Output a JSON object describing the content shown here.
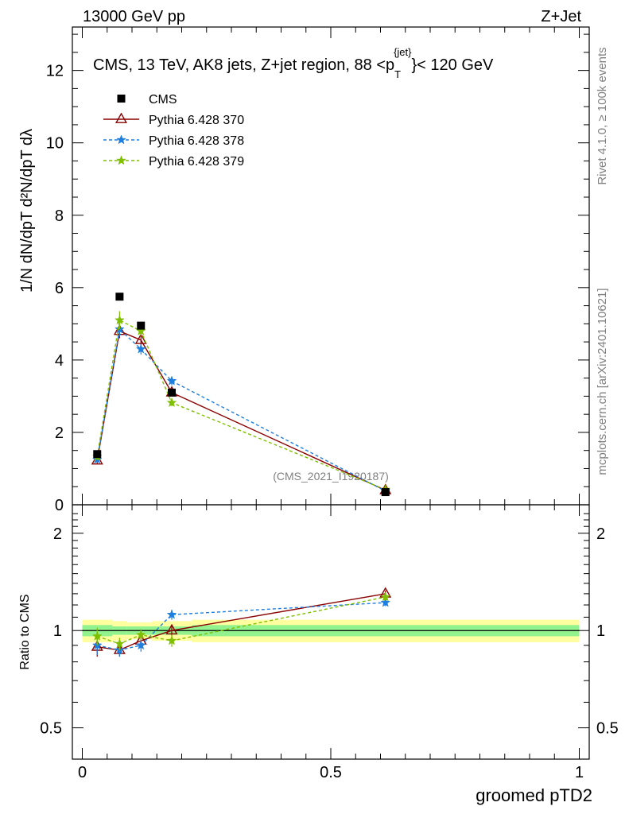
{
  "header": {
    "energy_label": "13000 GeV pp",
    "process_label": "Z+Jet"
  },
  "side_labels": {
    "rivet": "Rivet 4.1.0, ≥ 100k events",
    "mcplots": "mcplots.cern.ch [arXiv:2401.10621]"
  },
  "chart_data": {
    "type": "line",
    "title": "CMS, 13 TeV, AK8 jets, Z+jet region, 88 <p_T^{jet}< 120 GeV",
    "title_parts": {
      "main": "CMS, 13 TeV, AK8 jets, Z+jet region, 88 <p",
      "sub": "T",
      "sup": "{jet}",
      "tail": "}< 120 GeV"
    },
    "watermark": "(CMS_2021_I1920187)",
    "xlabel": "groomed pTD2",
    "ylabel_main": "1/N dN/dpT d²N/dpT dλ",
    "ylabel_ratio": "Ratio to CMS",
    "xlim": [
      -0.02,
      1.02
    ],
    "ylim_main": [
      0,
      13.2
    ],
    "ylim_ratio": [
      0.4,
      2.45
    ],
    "x_ticks": [
      0,
      0.5,
      1
    ],
    "x_tick_labels": [
      "0",
      "0.5",
      "1"
    ],
    "y_ticks_main": [
      0,
      2,
      4,
      6,
      8,
      10,
      12
    ],
    "y_tick_labels_main": [
      "0",
      "2",
      "4",
      "6",
      "8",
      "10",
      "12"
    ],
    "y_ticks_ratio": [
      0.5,
      1,
      2
    ],
    "y_tick_labels_ratio": [
      "0.5",
      "1",
      "2"
    ],
    "x": [
      0.03,
      0.075,
      0.118,
      0.18,
      0.61
    ],
    "data": {
      "name": "CMS",
      "values": [
        1.4,
        5.75,
        4.95,
        3.1,
        0.35
      ],
      "errors": [
        0.05,
        0.08,
        0.07,
        0.06,
        0.02
      ]
    },
    "band": {
      "edges": [
        0.0,
        0.06,
        0.09,
        0.14,
        0.22,
        1.0
      ],
      "inner": [
        0.04,
        0.03,
        0.03,
        0.03,
        0.04
      ],
      "outer": [
        0.08,
        0.07,
        0.06,
        0.07,
        0.08
      ]
    },
    "series": [
      {
        "name": "Pythia 6.428 370",
        "color": "#8b0000",
        "dash": "",
        "marker": "triangle",
        "values": [
          1.22,
          4.8,
          4.55,
          3.1,
          0.4
        ],
        "errors": [
          0.08,
          0.2,
          0.15,
          0.08,
          0.03
        ],
        "ratio": [
          0.89,
          0.87,
          0.93,
          1.0,
          1.3
        ],
        "ratio_errors": [
          0.06,
          0.04,
          0.04,
          0.04,
          0.03
        ]
      },
      {
        "name": "Pythia 6.428 378",
        "color": "#1f7fdf",
        "dash": "4,3",
        "marker": "star",
        "values": [
          1.25,
          4.85,
          4.3,
          3.42,
          0.38
        ],
        "errors": [
          0.08,
          0.2,
          0.15,
          0.12,
          0.03
        ],
        "ratio": [
          0.9,
          0.87,
          0.9,
          1.12,
          1.22
        ],
        "ratio_errors": [
          0.06,
          0.04,
          0.04,
          0.04,
          0.03
        ]
      },
      {
        "name": "Pythia 6.428 379",
        "color": "#7fbf00",
        "dash": "4,3",
        "marker": "star",
        "values": [
          1.33,
          5.1,
          4.8,
          2.82,
          0.42
        ],
        "errors": [
          0.08,
          0.25,
          0.15,
          0.1,
          0.03
        ],
        "ratio": [
          0.96,
          0.91,
          0.97,
          0.93,
          1.27
        ],
        "ratio_errors": [
          0.06,
          0.04,
          0.04,
          0.04,
          0.03
        ]
      }
    ]
  }
}
